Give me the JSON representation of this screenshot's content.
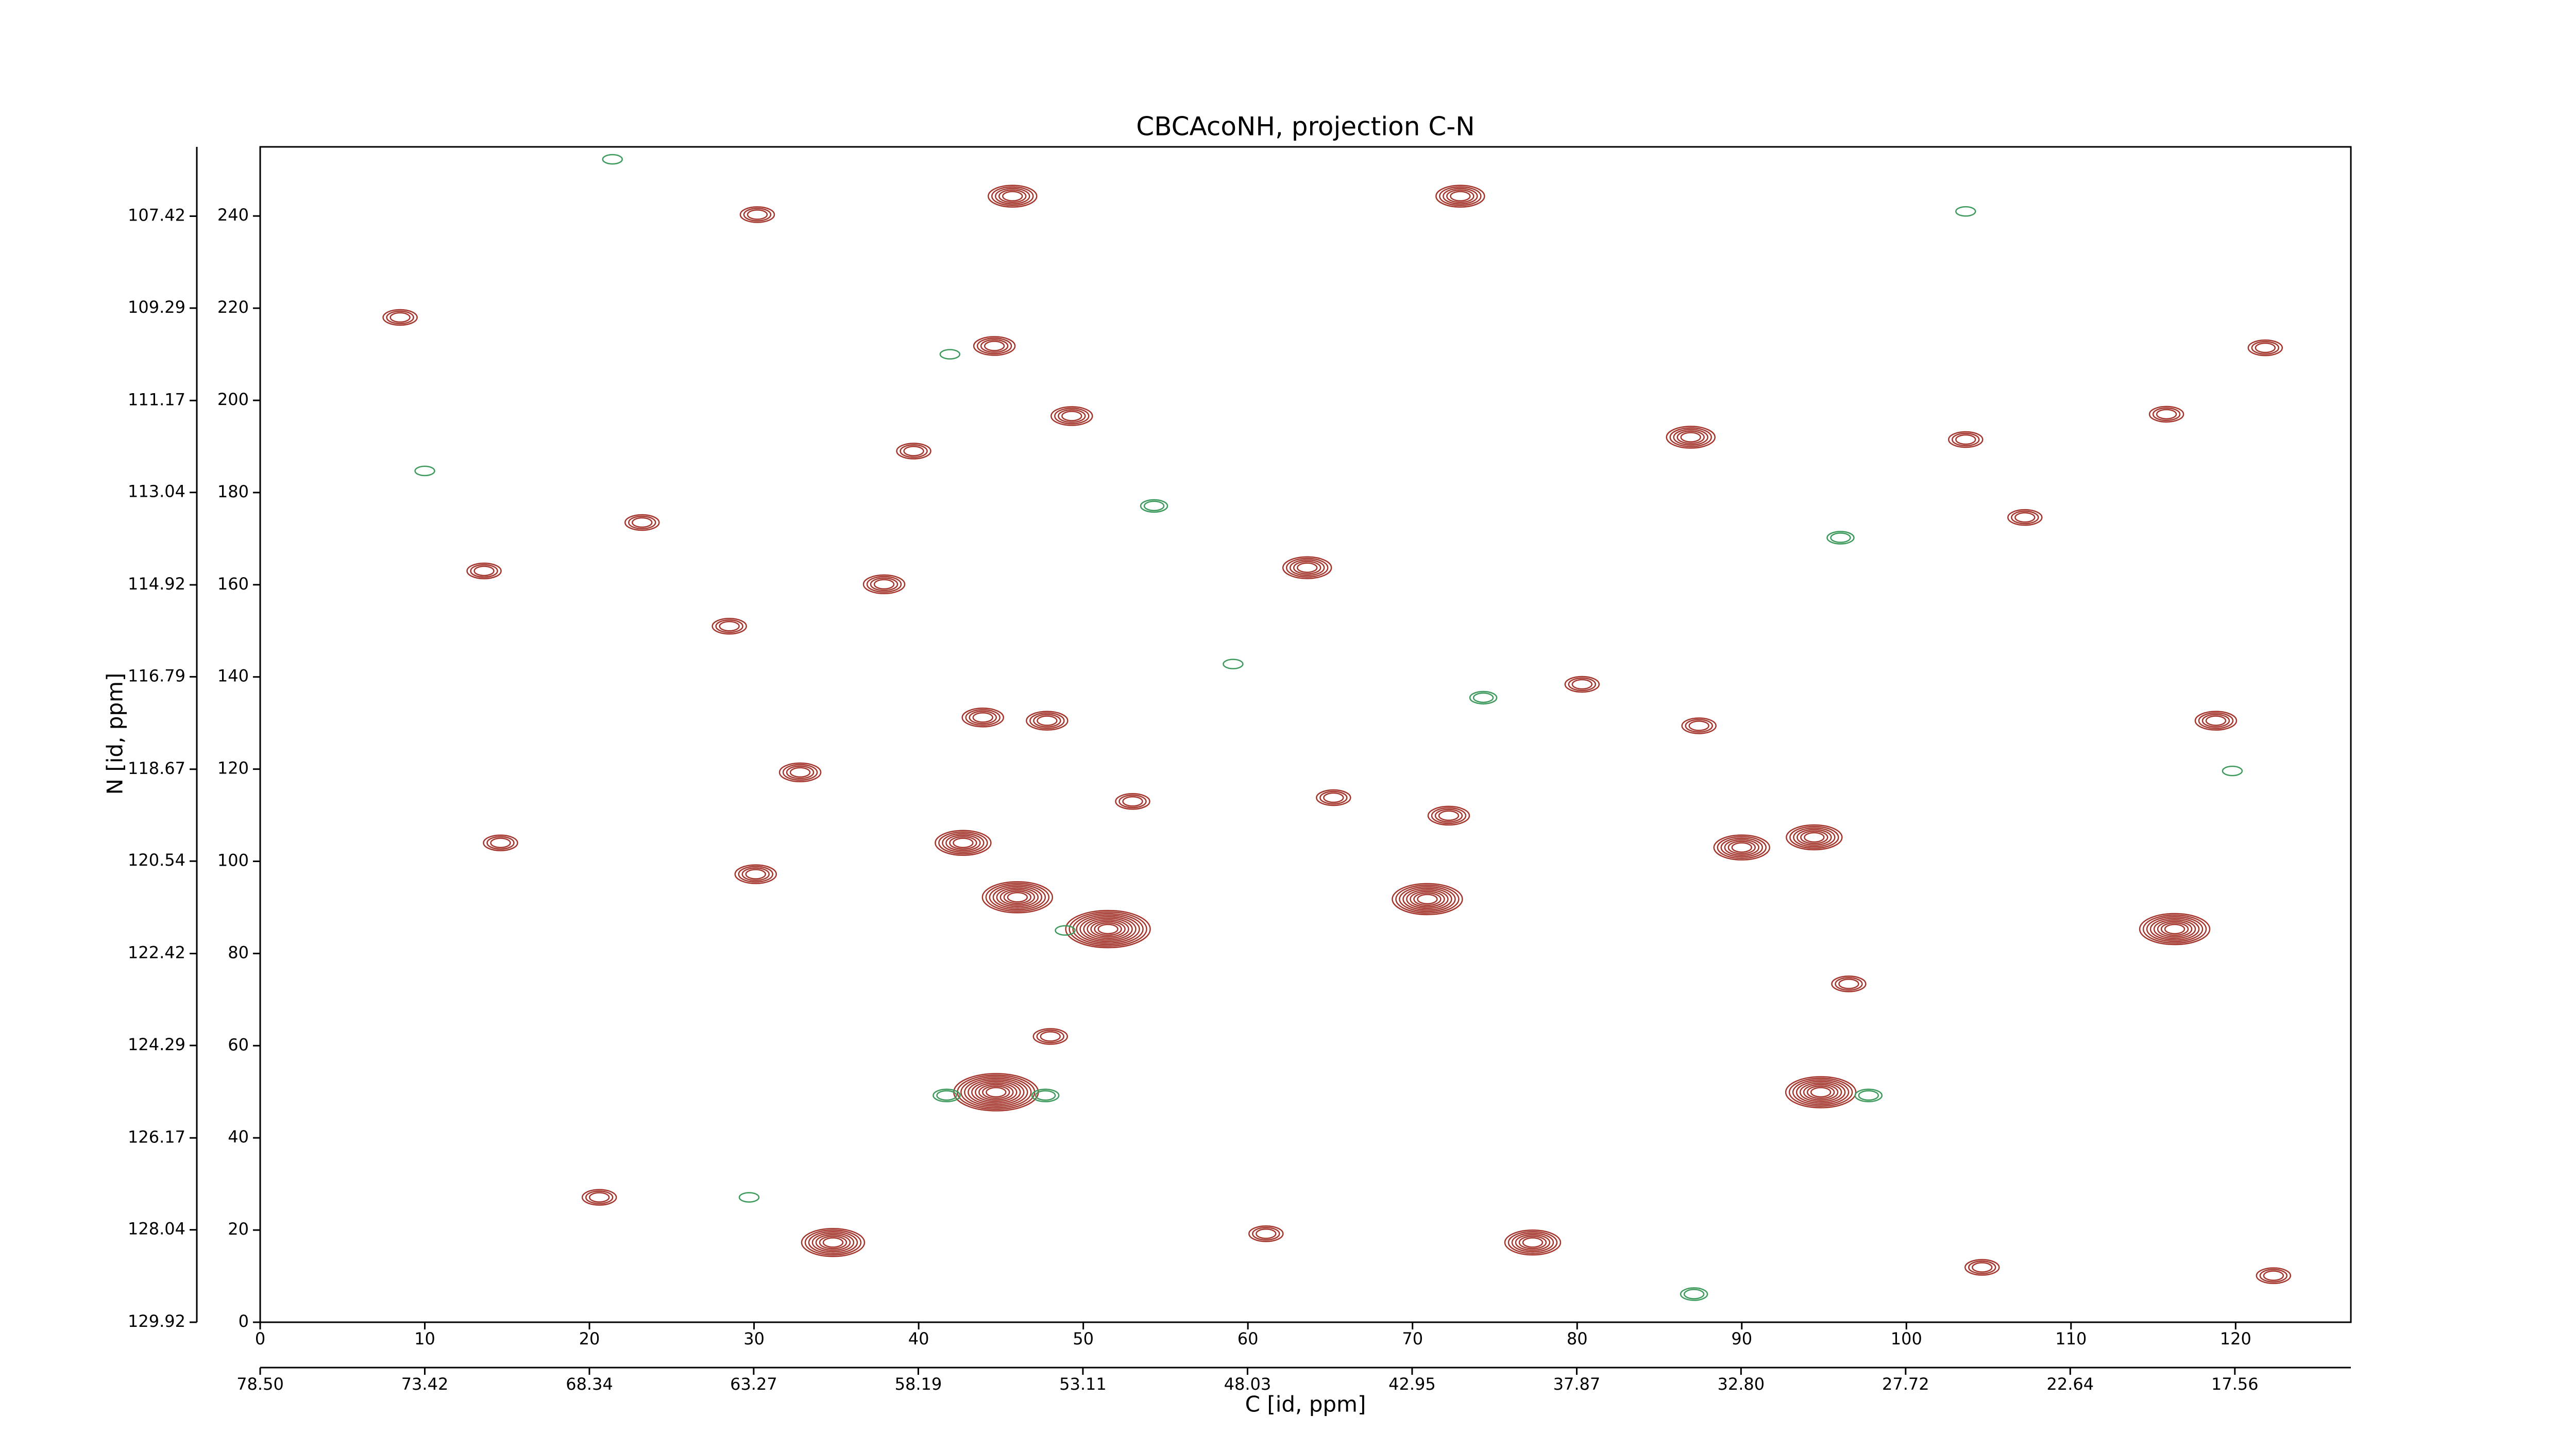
{
  "chart_data": {
    "type": "contour",
    "title": "CBCAcoNH, projection C-N",
    "xlabel": "C [id, ppm]",
    "ylabel": "N [id, ppm]",
    "xlim": [
      0,
      127
    ],
    "ylim": [
      0,
      255
    ],
    "xticks": [
      0,
      10,
      20,
      30,
      40,
      50,
      60,
      70,
      80,
      90,
      100,
      110,
      120
    ],
    "yticks": [
      0,
      20,
      40,
      60,
      80,
      100,
      120,
      140,
      160,
      180,
      200,
      220,
      240
    ],
    "x2lim": [
      78.5,
      13.98
    ],
    "x2ticks": [
      {
        "value": 78.5,
        "label": "78.50"
      },
      73.42,
      68.34,
      63.27,
      58.19,
      53.11,
      48.03,
      42.95,
      37.87,
      {
        "value": 32.8,
        "label": "32.80"
      },
      27.72,
      22.64,
      17.56
    ],
    "y2lim": [
      129.92,
      106.01
    ],
    "y2ticks": [
      129.92,
      128.04,
      126.17,
      124.29,
      122.42,
      120.54,
      118.67,
      116.79,
      114.92,
      113.04,
      111.17,
      109.29,
      107.42
    ],
    "positive_color": "#a3352c",
    "negative_color": "#3d9a5c",
    "x": [
      44.7,
      51.5,
      46.0,
      70.9,
      94.8,
      116.3,
      34.8,
      77.3,
      90.0,
      94.4,
      42.7,
      63.6,
      86.9,
      72.9,
      45.7,
      49.3,
      44.6,
      47.8,
      118.8,
      32.8,
      30.1,
      72.2,
      48.0,
      43.9,
      37.9,
      13.6,
      28.5,
      23.2,
      103.6,
      107.2,
      115.8,
      121.8,
      39.7,
      30.2,
      8.5,
      80.3,
      65.2,
      96.5,
      87.4,
      14.6,
      61.1,
      20.6,
      122.3,
      104.6,
      53.0,
      41.7,
      47.7,
      97.7,
      74.3,
      54.3,
      87.1,
      96.0,
      59.1,
      41.9,
      103.6,
      21.4,
      10.0,
      119.8,
      29.7,
      48.9
    ],
    "y": [
      49.9,
      85.3,
      92.2,
      91.8,
      49.9,
      85.3,
      17.3,
      17.3,
      103,
      105.2,
      104,
      163.7,
      192,
      244.3,
      244.3,
      196.6,
      211.8,
      130.5,
      130.5,
      119.3,
      97.2,
      109.9,
      62,
      131.2,
      160.1,
      163,
      151,
      173.5,
      191.5,
      174.6,
      197,
      211.4,
      189,
      240.3,
      218,
      138.4,
      113.8,
      73.4,
      129.4,
      104,
      19.2,
      27.1,
      10.1,
      11.9,
      113,
      49.2,
      49.2,
      49.2,
      135.5,
      177.1,
      6.1,
      170.2,
      142.8,
      210,
      241,
      252.3,
      184.7,
      119.6,
      27.1,
      85
    ],
    "values": [
      10,
      10,
      8,
      8,
      8,
      8,
      7,
      6,
      6,
      6,
      6,
      5,
      5,
      5,
      5,
      4,
      4,
      4,
      4,
      4,
      4,
      4,
      3,
      4,
      4,
      3,
      3,
      3,
      3,
      3,
      3,
      3,
      3,
      3,
      3,
      3,
      3,
      3,
      3,
      3,
      3,
      3,
      3,
      3,
      3,
      -2,
      -2,
      -2,
      -2,
      -2,
      -2,
      -2,
      -1,
      -1,
      -1,
      -1,
      -1,
      -1,
      -1,
      -1
    ]
  }
}
